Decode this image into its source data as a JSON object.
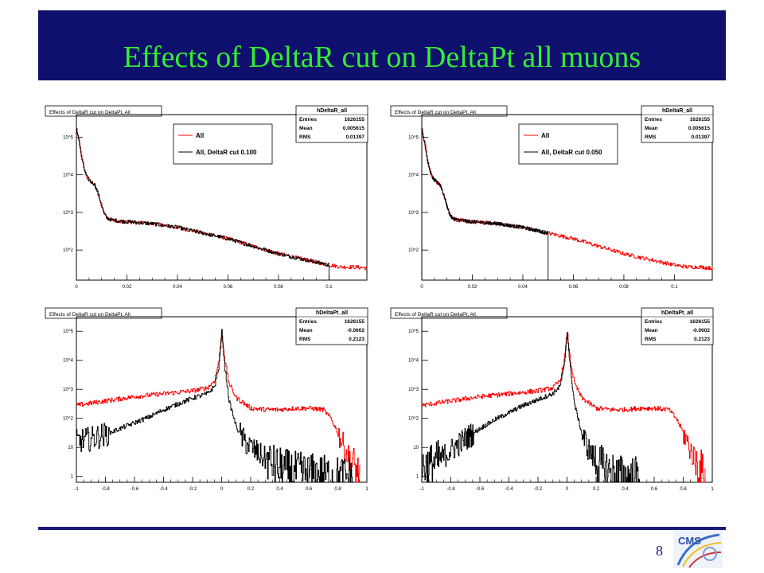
{
  "slide": {
    "title": "Effects of DeltaR cut on DeltaPt all muons",
    "page_number": "8",
    "logo_text": "CMS"
  },
  "colors": {
    "title_bg": "#0f0f6e",
    "title_text": "#33ee33",
    "all": "#ff0000",
    "cut": "#000000"
  },
  "chart_data": [
    {
      "type": "line",
      "title": "Effects of DeltaR cut on DeltaPt, All",
      "stats": {
        "name": "hDeltaR_all",
        "rows": [
          [
            "Entries",
            "1626155"
          ],
          [
            "Mean",
            "0.005615"
          ],
          [
            "RMS",
            "0.01397"
          ]
        ]
      },
      "legend": [
        "All",
        "All, DeltaR cut 0.100"
      ],
      "log_y": true,
      "xlim": [
        0,
        0.115
      ],
      "x_ticks": [
        "0",
        "0.02",
        "0.04",
        "0.06",
        "0.08",
        "0.1"
      ],
      "x_tick_values": [
        0,
        0.02,
        0.04,
        0.06,
        0.08,
        0.1
      ],
      "y_ticks": [
        "10^2",
        "10^3",
        "10^4",
        "10^5"
      ],
      "y_tick_values": [
        2,
        3,
        4,
        5
      ],
      "ylim_log10": [
        1.2,
        5.6
      ],
      "cut": 0.1,
      "series": [
        {
          "name": "All",
          "color": "#ff0000",
          "x": [
            0,
            0.001,
            0.002,
            0.003,
            0.004,
            0.005,
            0.006,
            0.007,
            0.008,
            0.009,
            0.01,
            0.011,
            0.012,
            0.014,
            0.016,
            0.02,
            0.03,
            0.04,
            0.05,
            0.06,
            0.07,
            0.08,
            0.09,
            0.1,
            0.105,
            0.11,
            0.115
          ],
          "y_log10": [
            5.2,
            4.9,
            4.45,
            4.15,
            3.95,
            3.85,
            3.8,
            3.75,
            3.6,
            3.4,
            3.15,
            2.95,
            2.85,
            2.8,
            2.78,
            2.75,
            2.7,
            2.6,
            2.45,
            2.3,
            2.1,
            1.9,
            1.75,
            1.6,
            1.55,
            1.55,
            1.52
          ]
        },
        {
          "name": "All, DeltaR cut 0.100",
          "color": "#000000",
          "x": [
            0,
            0.001,
            0.002,
            0.003,
            0.004,
            0.005,
            0.006,
            0.007,
            0.008,
            0.009,
            0.01,
            0.011,
            0.012,
            0.014,
            0.016,
            0.02,
            0.03,
            0.04,
            0.05,
            0.06,
            0.07,
            0.08,
            0.09,
            0.1
          ],
          "y_log10": [
            5.2,
            4.9,
            4.45,
            4.15,
            3.95,
            3.85,
            3.8,
            3.75,
            3.6,
            3.4,
            3.15,
            2.95,
            2.85,
            2.8,
            2.78,
            2.75,
            2.7,
            2.6,
            2.45,
            2.3,
            2.1,
            1.9,
            1.75,
            1.6
          ]
        }
      ]
    },
    {
      "type": "line",
      "title": "Effects of DeltaR cut on DeltaPt, All",
      "stats": {
        "name": "hDeltaR_all",
        "rows": [
          [
            "Entries",
            "1626155"
          ],
          [
            "Mean",
            "0.005615"
          ],
          [
            "RMS",
            "0.01397"
          ]
        ]
      },
      "legend": [
        "All",
        "All, DeltaR cut 0.050"
      ],
      "log_y": true,
      "xlim": [
        0,
        0.115
      ],
      "x_ticks": [
        "0",
        "0.02",
        "0.04",
        "0.06",
        "0.08",
        "0.1"
      ],
      "x_tick_values": [
        0,
        0.02,
        0.04,
        0.06,
        0.08,
        0.1
      ],
      "y_ticks": [
        "10^2",
        "10^3",
        "10^4",
        "10^5"
      ],
      "y_tick_values": [
        2,
        3,
        4,
        5
      ],
      "ylim_log10": [
        1.2,
        5.6
      ],
      "cut": 0.05,
      "series": [
        {
          "name": "All",
          "color": "#ff0000",
          "x": [
            0,
            0.001,
            0.002,
            0.003,
            0.004,
            0.005,
            0.006,
            0.007,
            0.008,
            0.009,
            0.01,
            0.011,
            0.012,
            0.014,
            0.016,
            0.02,
            0.03,
            0.04,
            0.05,
            0.06,
            0.07,
            0.08,
            0.09,
            0.1,
            0.105,
            0.11,
            0.115
          ],
          "y_log10": [
            5.2,
            4.9,
            4.45,
            4.15,
            3.95,
            3.85,
            3.8,
            3.75,
            3.6,
            3.4,
            3.15,
            2.95,
            2.85,
            2.8,
            2.78,
            2.75,
            2.7,
            2.6,
            2.45,
            2.3,
            2.1,
            1.9,
            1.75,
            1.6,
            1.55,
            1.55,
            1.52
          ]
        },
        {
          "name": "All, DeltaR cut 0.050",
          "color": "#000000",
          "x": [
            0,
            0.001,
            0.002,
            0.003,
            0.004,
            0.005,
            0.006,
            0.007,
            0.008,
            0.009,
            0.01,
            0.011,
            0.012,
            0.014,
            0.016,
            0.02,
            0.03,
            0.04,
            0.05
          ],
          "y_log10": [
            5.2,
            4.9,
            4.45,
            4.15,
            3.95,
            3.85,
            3.8,
            3.75,
            3.6,
            3.4,
            3.15,
            2.95,
            2.85,
            2.8,
            2.78,
            2.75,
            2.7,
            2.6,
            2.45
          ]
        }
      ]
    },
    {
      "type": "line",
      "title": "Effects of DeltaR cut on DeltaPt, All",
      "stats": {
        "name": "hDeltaPt_all",
        "rows": [
          [
            "Entries",
            "1626155"
          ],
          [
            "Mean",
            "-0.0602"
          ],
          [
            "RMS",
            "0.2123"
          ]
        ]
      },
      "log_y": true,
      "xlim": [
        -1,
        1
      ],
      "x_ticks": [
        "-1",
        "-0.8",
        "-0.6",
        "-0.4",
        "-0.2",
        "0",
        "0.2",
        "0.4",
        "0.6",
        "0.8",
        "1"
      ],
      "x_tick_values": [
        -1,
        -0.8,
        -0.6,
        -0.4,
        -0.2,
        0,
        0.2,
        0.4,
        0.6,
        0.8,
        1
      ],
      "y_ticks": [
        "1",
        "10",
        "10^2",
        "10^3",
        "10^4",
        "10^5"
      ],
      "y_tick_values": [
        0,
        1,
        2,
        3,
        4,
        5
      ],
      "ylim_log10": [
        -0.2,
        5.5
      ],
      "series": [
        {
          "name": "All",
          "color": "#ff0000",
          "x": [
            -1,
            -0.8,
            -0.6,
            -0.4,
            -0.2,
            -0.1,
            -0.05,
            -0.02,
            0,
            0.02,
            0.05,
            0.1,
            0.2,
            0.3,
            0.4,
            0.5,
            0.6,
            0.7,
            0.75,
            0.8,
            0.85,
            0.9,
            0.95
          ],
          "y_log10": [
            2.45,
            2.6,
            2.75,
            2.85,
            2.95,
            3.05,
            3.3,
            4.0,
            5.0,
            4.0,
            3.2,
            2.7,
            2.35,
            2.3,
            2.3,
            2.35,
            2.35,
            2.3,
            2.0,
            1.5,
            0.9,
            0.4,
            0
          ]
        },
        {
          "name": "All, DeltaR cut",
          "color": "#000000",
          "x": [
            -1,
            -0.9,
            -0.8,
            -0.7,
            -0.6,
            -0.5,
            -0.4,
            -0.3,
            -0.2,
            -0.1,
            -0.05,
            -0.02,
            0,
            0.02,
            0.05,
            0.1,
            0.15,
            0.2,
            0.25,
            0.3,
            0.35,
            0.4,
            0.5,
            0.6,
            0.7,
            0.8,
            0.9
          ],
          "y_log10": [
            1.2,
            1.3,
            1.45,
            1.65,
            1.85,
            2.05,
            2.3,
            2.5,
            2.7,
            2.85,
            3.1,
            3.8,
            5.0,
            3.8,
            2.6,
            1.7,
            1.25,
            1.0,
            0.8,
            0.6,
            0.4,
            0.3,
            0.15,
            0.1,
            0.05,
            0,
            0
          ]
        }
      ]
    },
    {
      "type": "line",
      "title": "Effects of DeltaR cut on DeltaPt, All",
      "stats": {
        "name": "hDeltaPt_all",
        "rows": [
          [
            "Entries",
            "1626155"
          ],
          [
            "Mean",
            "-0.0602"
          ],
          [
            "RMS",
            "0.2123"
          ]
        ]
      },
      "log_y": true,
      "xlim": [
        -1,
        1
      ],
      "x_ticks": [
        "-1",
        "-0.8",
        "-0.6",
        "-0.4",
        "-0.2",
        "0",
        "0.2",
        "0.4",
        "0.6",
        "0.8",
        "1"
      ],
      "x_tick_values": [
        -1,
        -0.8,
        -0.6,
        -0.4,
        -0.2,
        0,
        0.2,
        0.4,
        0.6,
        0.8,
        1
      ],
      "y_ticks": [
        "1",
        "10",
        "10^2",
        "10^3",
        "10^4",
        "10^5"
      ],
      "y_tick_values": [
        0,
        1,
        2,
        3,
        4,
        5
      ],
      "ylim_log10": [
        -0.2,
        5.5
      ],
      "series": [
        {
          "name": "All",
          "color": "#ff0000",
          "x": [
            -1,
            -0.8,
            -0.6,
            -0.4,
            -0.2,
            -0.1,
            -0.05,
            -0.02,
            0,
            0.02,
            0.05,
            0.1,
            0.2,
            0.3,
            0.4,
            0.5,
            0.6,
            0.7,
            0.75,
            0.8,
            0.85,
            0.9,
            0.95
          ],
          "y_log10": [
            2.45,
            2.6,
            2.75,
            2.85,
            2.95,
            3.05,
            3.3,
            4.0,
            5.0,
            4.0,
            3.2,
            2.7,
            2.35,
            2.3,
            2.3,
            2.35,
            2.35,
            2.3,
            2.0,
            1.5,
            0.9,
            0.4,
            0
          ]
        },
        {
          "name": "All, DeltaR cut",
          "color": "#000000",
          "x": [
            -1,
            -0.9,
            -0.8,
            -0.7,
            -0.6,
            -0.5,
            -0.4,
            -0.3,
            -0.2,
            -0.1,
            -0.05,
            -0.02,
            0,
            0.02,
            0.05,
            0.1,
            0.15,
            0.2,
            0.25,
            0.3,
            0.35,
            0.4,
            0.5
          ],
          "y_log10": [
            0.3,
            0.5,
            0.9,
            1.3,
            1.65,
            1.95,
            2.2,
            2.45,
            2.65,
            2.85,
            3.1,
            3.8,
            5.0,
            3.8,
            2.5,
            1.5,
            0.9,
            0.5,
            0.3,
            0.15,
            0.05,
            0,
            0
          ]
        }
      ]
    }
  ]
}
